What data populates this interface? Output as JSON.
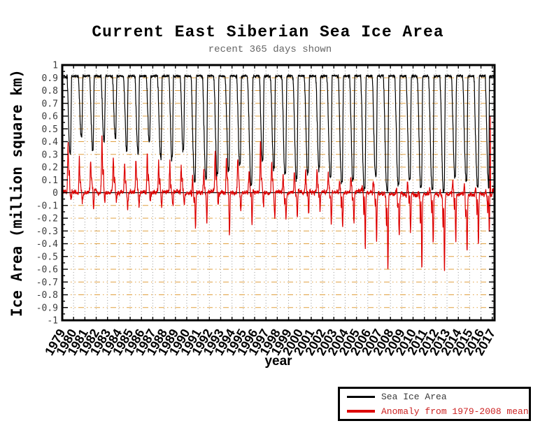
{
  "chart_data": {
    "type": "line",
    "title": "Current East Siberian Sea Ice Area",
    "subtitle": "recent 365 days shown",
    "xlabel": "year",
    "ylabel": "Ice Area (million square km)",
    "xlim": [
      1979,
      2017.2
    ],
    "ylim": [
      -1,
      1
    ],
    "x_tick_labels": [
      "1979",
      "1980",
      "1981",
      "1982",
      "1983",
      "1984",
      "1985",
      "1986",
      "1987",
      "1988",
      "1989",
      "1990",
      "1991",
      "1992",
      "1993",
      "1994",
      "1995",
      "1996",
      "1997",
      "1998",
      "1999",
      "2000",
      "2001",
      "2002",
      "2003",
      "2004",
      "2005",
      "2006",
      "2007",
      "2008",
      "2009",
      "2010",
      "2011",
      "2012",
      "2013",
      "2014",
      "2015",
      "2016",
      "2017"
    ],
    "y_tick_values": [
      1,
      0.9,
      0.8,
      0.7,
      0.6,
      0.5,
      0.4,
      0.3,
      0.2,
      0.1,
      0,
      -0.1,
      -0.2,
      -0.3,
      -0.4,
      -0.5,
      -0.6,
      -0.7,
      -0.8,
      -0.9,
      -1
    ],
    "y_tick_labels": [
      "1",
      "0.9",
      "0.8",
      "0.7",
      "0.6",
      "0.5",
      "0.4",
      "0.3",
      "0.2",
      "0.1",
      "0",
      "-0.1",
      "-0.2",
      "-0.3",
      "-0.4",
      "-0.5",
      "-0.6",
      "-0.7",
      "-0.8",
      "-0.9",
      "-1"
    ],
    "grid": {
      "horizontal_color": "#e0a040",
      "horizontal_style": "dash-dot",
      "vertical_color": "#9b9b9b",
      "vertical_style": "dotted"
    },
    "zero_line_color": "#000000",
    "frame_color": "#000000",
    "background": "#ffffff",
    "legend_position": "bottom-right",
    "series": [
      {
        "name": "Sea Ice Area",
        "color": "#000000",
        "winter_max": 0.92,
        "years": [
          1979,
          1980,
          1981,
          1982,
          1983,
          1984,
          1985,
          1986,
          1987,
          1988,
          1989,
          1990,
          1991,
          1992,
          1993,
          1994,
          1995,
          1996,
          1997,
          1998,
          1999,
          2000,
          2001,
          2002,
          2003,
          2004,
          2005,
          2006,
          2007,
          2008,
          2009,
          2010,
          2011,
          2012,
          2013,
          2014,
          2015,
          2016
        ],
        "summer_min": [
          0.3,
          0.44,
          0.33,
          0.4,
          0.43,
          0.32,
          0.3,
          0.4,
          0.27,
          0.28,
          0.33,
          0.08,
          0.1,
          0.15,
          0.18,
          0.22,
          0.06,
          0.25,
          0.2,
          0.15,
          0.12,
          0.15,
          0.2,
          0.12,
          0.08,
          0.1,
          0.03,
          0.12,
          0.01,
          0.06,
          0.1,
          0.04,
          0.03,
          0.01,
          0.12,
          0.09,
          0.04,
          0.03
        ]
      },
      {
        "name": "Anomaly from 1979-2008 mean",
        "color": "#dd0000",
        "baseline": "1979-2008",
        "melt_season_peak": [
          0.38,
          0.27,
          0.25,
          0.42,
          0.28,
          0.23,
          0.25,
          0.3,
          0.26,
          0.23,
          0.2,
          0.12,
          0.15,
          0.33,
          0.3,
          0.25,
          0.18,
          0.38,
          0.27,
          0.12,
          0.17,
          0.15,
          0.18,
          0.15,
          0.05,
          0.12,
          0.05,
          0.1,
          0.02,
          0.05,
          0.1,
          0.03,
          0.05,
          0.02,
          0.1,
          0.05,
          0.04,
          0.05
        ],
        "fall_extreme": [
          -0.05,
          -0.08,
          -0.1,
          -0.05,
          -0.06,
          -0.1,
          -0.12,
          -0.06,
          -0.1,
          -0.12,
          -0.08,
          -0.3,
          -0.22,
          -0.12,
          -0.33,
          -0.15,
          -0.25,
          -0.1,
          -0.2,
          -0.25,
          -0.22,
          -0.2,
          -0.12,
          -0.25,
          -0.3,
          -0.25,
          -0.42,
          -0.35,
          -0.62,
          -0.35,
          -0.3,
          -0.55,
          -0.4,
          -0.6,
          -0.35,
          -0.45,
          -0.4,
          -0.3
        ],
        "final_spike": 0.62
      }
    ]
  },
  "legend": {
    "items": [
      "Sea Ice Area",
      "Anomaly from 1979-2008 mean"
    ]
  }
}
